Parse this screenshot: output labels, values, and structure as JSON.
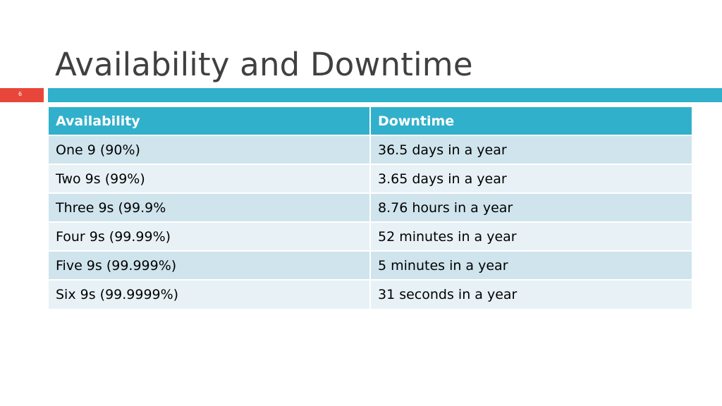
{
  "slide": {
    "title": "Availability and Downtime",
    "page_number": "6"
  },
  "colors": {
    "accent": "#31b0cb",
    "page_number_box": "#e8463a",
    "row_dark": "#cfe4ed",
    "row_light": "#e8f2f6",
    "title_text": "#404040"
  },
  "table": {
    "headers": [
      "Availability",
      "Downtime"
    ],
    "rows": [
      [
        "One 9  (90%)",
        "36.5 days in a year"
      ],
      [
        "Two 9s (99%)",
        "3.65 days in a year"
      ],
      [
        "Three 9s (99.9%",
        "8.76 hours in a year"
      ],
      [
        "Four 9s (99.99%)",
        "52 minutes in a year"
      ],
      [
        "Five 9s (99.999%)",
        "5 minutes in a year"
      ],
      [
        "Six 9s (99.9999%)",
        "31 seconds in a year"
      ]
    ]
  }
}
